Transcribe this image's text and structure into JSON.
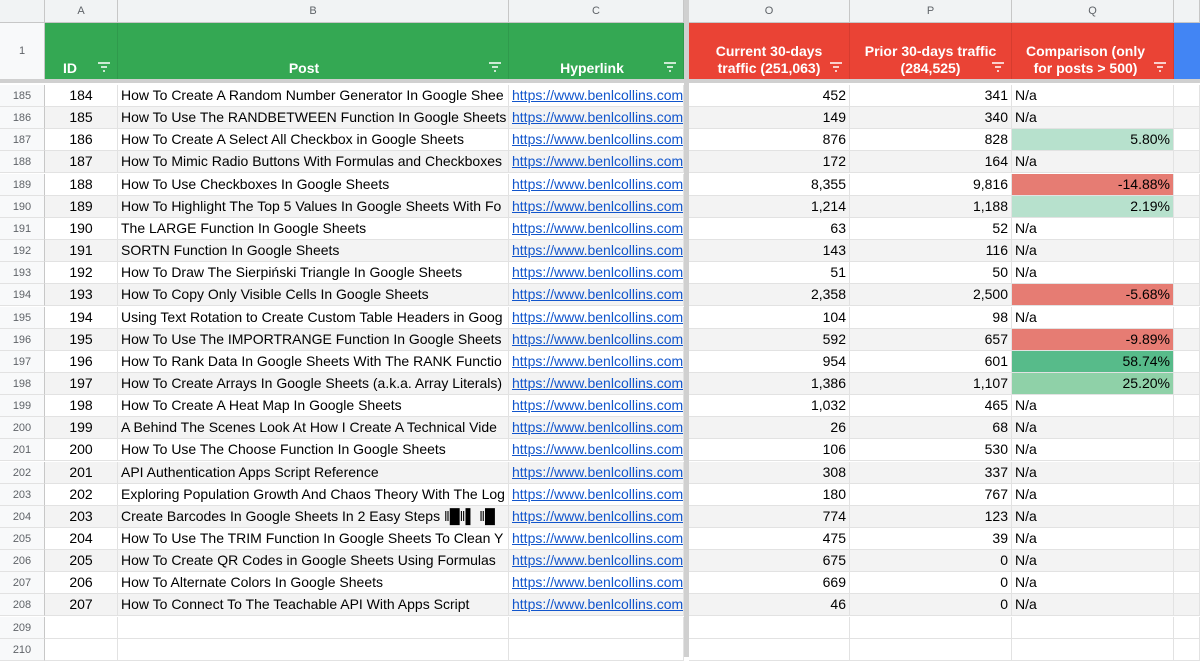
{
  "columns": {
    "A": "A",
    "B": "B",
    "C": "C",
    "O": "O",
    "P": "P",
    "Q": "Q"
  },
  "header_row_number": "1",
  "headers": {
    "id": "ID",
    "post": "Post",
    "hyperlink": "Hyperlink",
    "current": "Current 30-days traffic (251,063)",
    "prior": "Prior 30-days traffic (284,525)",
    "comparison": "Comparison (only for posts > 500)"
  },
  "colors": {
    "green": "#34a853",
    "red": "#ea4335",
    "blue": "#4285f4",
    "pos_light": "#b7e1cd",
    "pos_mid": "#8fd1a8",
    "pos_strong": "#57bb8a",
    "neg": "#e67c73"
  },
  "rows": [
    {
      "rn": "185",
      "id": "184",
      "post": "How To Create A Random Number Generator In Google Shee",
      "link": "https://www.benlcollins.com",
      "cur": "452",
      "prior": "341",
      "cmp": "N/a",
      "shade": "none"
    },
    {
      "rn": "186",
      "id": "185",
      "post": "How To Use The RANDBETWEEN Function In Google Sheets",
      "link": "https://www.benlcollins.com",
      "cur": "149",
      "prior": "340",
      "cmp": "N/a",
      "shade": "none"
    },
    {
      "rn": "187",
      "id": "186",
      "post": "How To Create A Select All Checkbox in Google Sheets",
      "link": "https://www.benlcollins.com",
      "cur": "876",
      "prior": "828",
      "cmp": "5.80%",
      "shade": "pos_light"
    },
    {
      "rn": "188",
      "id": "187",
      "post": "How To Mimic Radio Buttons With Formulas and Checkboxes",
      "link": "https://www.benlcollins.com",
      "cur": "172",
      "prior": "164",
      "cmp": "N/a",
      "shade": "none"
    },
    {
      "rn": "189",
      "id": "188",
      "post": "How To Use Checkboxes In Google Sheets",
      "link": "https://www.benlcollins.com",
      "cur": "8,355",
      "prior": "9,816",
      "cmp": "-14.88%",
      "shade": "neg"
    },
    {
      "rn": "190",
      "id": "189",
      "post": "How To Highlight The Top 5 Values In Google Sheets With Fo",
      "link": "https://www.benlcollins.com",
      "cur": "1,214",
      "prior": "1,188",
      "cmp": "2.19%",
      "shade": "pos_light"
    },
    {
      "rn": "191",
      "id": "190",
      "post": "The LARGE Function In Google Sheets",
      "link": "https://www.benlcollins.com",
      "cur": "63",
      "prior": "52",
      "cmp": "N/a",
      "shade": "none"
    },
    {
      "rn": "192",
      "id": "191",
      "post": "SORTN Function In Google Sheets",
      "link": "https://www.benlcollins.com",
      "cur": "143",
      "prior": "116",
      "cmp": "N/a",
      "shade": "none"
    },
    {
      "rn": "193",
      "id": "192",
      "post": "How To Draw The Sierpiński Triangle In Google Sheets",
      "link": "https://www.benlcollins.com",
      "cur": "51",
      "prior": "50",
      "cmp": "N/a",
      "shade": "none"
    },
    {
      "rn": "194",
      "id": "193",
      "post": "How To Copy Only Visible Cells In Google Sheets",
      "link": "https://www.benlcollins.com",
      "cur": "2,358",
      "prior": "2,500",
      "cmp": "-5.68%",
      "shade": "neg"
    },
    {
      "rn": "195",
      "id": "194",
      "post": "Using Text Rotation to Create Custom Table Headers in Goog",
      "link": "https://www.benlcollins.com",
      "cur": "104",
      "prior": "98",
      "cmp": "N/a",
      "shade": "none"
    },
    {
      "rn": "196",
      "id": "195",
      "post": "How To Use The IMPORTRANGE Function In Google Sheets",
      "link": "https://www.benlcollins.com",
      "cur": "592",
      "prior": "657",
      "cmp": "-9.89%",
      "shade": "neg"
    },
    {
      "rn": "197",
      "id": "196",
      "post": "How To Rank Data In Google Sheets With The RANK Functio",
      "link": "https://www.benlcollins.com",
      "cur": "954",
      "prior": "601",
      "cmp": "58.74%",
      "shade": "pos_strong"
    },
    {
      "rn": "198",
      "id": "197",
      "post": "How To Create Arrays In Google Sheets (a.k.a. Array Literals)",
      "link": "https://www.benlcollins.com",
      "cur": "1,386",
      "prior": "1,107",
      "cmp": "25.20%",
      "shade": "pos_mid"
    },
    {
      "rn": "199",
      "id": "198",
      "post": "How To Create A Heat Map In Google Sheets",
      "link": "https://www.benlcollins.com",
      "cur": "1,032",
      "prior": "465",
      "cmp": "N/a",
      "shade": "none"
    },
    {
      "rn": "200",
      "id": "199",
      "post": "A Behind The Scenes Look At How I Create A Technical Vide",
      "link": "https://www.benlcollins.com",
      "cur": "26",
      "prior": "68",
      "cmp": "N/a",
      "shade": "none"
    },
    {
      "rn": "201",
      "id": "200",
      "post": "How To Use The Choose Function In Google Sheets",
      "link": "https://www.benlcollins.com",
      "cur": "106",
      "prior": "530",
      "cmp": "N/a",
      "shade": "none"
    },
    {
      "rn": "202",
      "id": "201",
      "post": "API Authentication Apps Script Reference",
      "link": "https://www.benlcollins.com",
      "cur": "308",
      "prior": "337",
      "cmp": "N/a",
      "shade": "none"
    },
    {
      "rn": "203",
      "id": "202",
      "post": "Exploring Population Growth And Chaos Theory With The Log",
      "link": "https://www.benlcollins.com",
      "cur": "180",
      "prior": "767",
      "cmp": "N/a",
      "shade": "none"
    },
    {
      "rn": "204",
      "id": "203",
      "post": "Create Barcodes In Google Sheets In 2 Easy Steps ‖█‖▌ ‖█",
      "link": "https://www.benlcollins.com",
      "cur": "774",
      "prior": "123",
      "cmp": "N/a",
      "shade": "none"
    },
    {
      "rn": "205",
      "id": "204",
      "post": "How To Use The TRIM Function In Google Sheets To Clean Y",
      "link": "https://www.benlcollins.com",
      "cur": "475",
      "prior": "39",
      "cmp": "N/a",
      "shade": "none"
    },
    {
      "rn": "206",
      "id": "205",
      "post": "How To Create QR Codes in Google Sheets Using Formulas",
      "link": "https://www.benlcollins.com",
      "cur": "675",
      "prior": "0",
      "cmp": "N/a",
      "shade": "none"
    },
    {
      "rn": "207",
      "id": "206",
      "post": "How To Alternate Colors In Google Sheets",
      "link": "https://www.benlcollins.com",
      "cur": "669",
      "prior": "0",
      "cmp": "N/a",
      "shade": "none"
    },
    {
      "rn": "208",
      "id": "207",
      "post": "How To Connect To The Teachable API With Apps Script",
      "link": "https://www.benlcollins.com",
      "cur": "46",
      "prior": "0",
      "cmp": "N/a",
      "shade": "none"
    }
  ],
  "empty_rows": [
    "209",
    "210"
  ]
}
